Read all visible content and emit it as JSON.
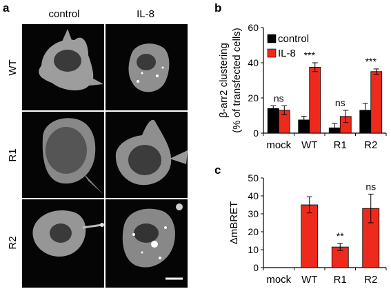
{
  "panels": {
    "a": {
      "label": "a",
      "columns": [
        "control",
        "IL-8"
      ],
      "rows": [
        "WT",
        "R1",
        "R2"
      ]
    },
    "b": {
      "label": "b"
    },
    "c": {
      "label": "c"
    }
  },
  "colors": {
    "control": "#000000",
    "il8": "#ee2a1c",
    "cell_bg": "#050505",
    "cell_fg": "#d9d9d9"
  },
  "chart_data": [
    {
      "type": "bar",
      "panel": "b",
      "ylabel": "β-arr2 clustering\n(% of transfected cells)",
      "ylim": [
        0,
        60
      ],
      "yticks": [
        0,
        20,
        40,
        60
      ],
      "categories": [
        "mock",
        "WT",
        "R1",
        "R2"
      ],
      "legend": {
        "placement": "top-left"
      },
      "series": [
        {
          "name": "control",
          "color": "#000000",
          "values": [
            14,
            7.5,
            3,
            13
          ],
          "errors": [
            1.5,
            2,
            2.5,
            4
          ]
        },
        {
          "name": "IL-8",
          "color": "#ee2a1c",
          "values": [
            13,
            37.5,
            9.5,
            35
          ],
          "errors": [
            2.5,
            2.5,
            3.5,
            1.5
          ]
        }
      ],
      "annotations": [
        "ns",
        "***",
        "ns",
        "***"
      ]
    },
    {
      "type": "bar",
      "panel": "c",
      "ylabel": "ΔmBRET",
      "ylim": [
        0,
        50
      ],
      "yticks": [
        0,
        10,
        20,
        30,
        40,
        50
      ],
      "categories": [
        "mock",
        "WT",
        "R1",
        "R2"
      ],
      "series": [
        {
          "color": "#ee2a1c",
          "values": [
            0,
            35,
            11.5,
            33
          ],
          "errors": [
            0,
            4.5,
            2,
            8
          ]
        }
      ],
      "annotations": [
        "",
        "",
        "**",
        "ns"
      ]
    }
  ]
}
